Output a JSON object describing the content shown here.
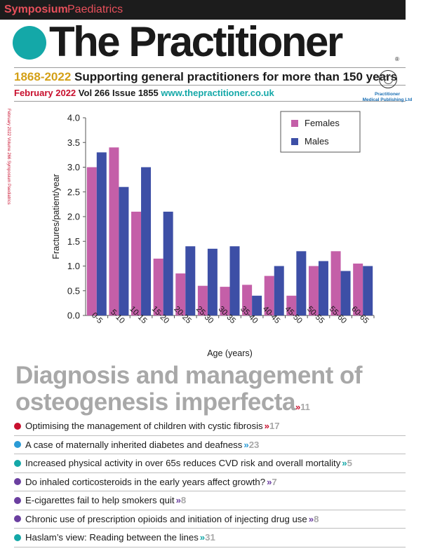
{
  "banner": {
    "symposium": "Symposium",
    "section": "Paediatrics"
  },
  "masthead": {
    "title": "The Practitioner",
    "registered": "®"
  },
  "tagline": {
    "years": "1868-2022",
    "text": "Supporting general practitioners for more than 150 years"
  },
  "issue": {
    "date": "February 2022",
    "volume": "Vol 266 Issue 1855",
    "url": "www.thepractitioner.co.uk"
  },
  "publisher": {
    "line1": "Practitioner",
    "line2": "Medical Publishing Ltd"
  },
  "spine": "February 2022 Volume 266 Symposium Paediatrics",
  "headline": {
    "line1": "Diagnosis and management of",
    "line2": "osteogenesis imperfecta",
    "chevron": "»",
    "page": "11"
  },
  "chart_data": {
    "type": "bar",
    "categories": [
      "0-5",
      "5-10",
      "10-15",
      "15-20",
      "20-25",
      "25-30",
      "30-35",
      "35-40",
      "40-45",
      "45-50",
      "50-55",
      "55-60",
      "60-65"
    ],
    "series": [
      {
        "name": "Females",
        "color": "#c45fa8",
        "values": [
          3.0,
          3.4,
          2.1,
          1.15,
          0.85,
          0.6,
          0.58,
          0.62,
          0.8,
          0.4,
          1.0,
          1.3,
          1.05
        ]
      },
      {
        "name": "Males",
        "color": "#3d4fa6",
        "values": [
          3.3,
          2.6,
          3.0,
          2.1,
          1.4,
          1.35,
          1.4,
          0.4,
          1.0,
          1.3,
          1.1,
          0.9,
          1.0
        ]
      }
    ],
    "title": "",
    "xlabel": "Age (years)",
    "ylabel": "Fractures/patient/year",
    "ylim": [
      0,
      4.0
    ],
    "yticks": [
      "0.0",
      "0.5",
      "1.0",
      "1.5",
      "2.0",
      "2.5",
      "3.0",
      "3.5",
      "4.0"
    ],
    "grid": false,
    "legend": "top-right"
  },
  "stories": [
    {
      "text": "Optimising the management of children with cystic fibrosis",
      "chevron": "»",
      "page": "17",
      "color": "#c8102e"
    },
    {
      "text": "A case of maternally inherited diabetes and deafness",
      "chevron": "»",
      "page": "23",
      "color": "#2b9bd6"
    },
    {
      "text": "Increased physical activity in over 65s reduces CVD risk and overall mortality",
      "chevron": "»",
      "page": "5",
      "color": "#14a8a8"
    },
    {
      "text": "Do inhaled corticosteroids in the early years affect growth?",
      "chevron": "»",
      "page": "7",
      "color": "#6b3fa0"
    },
    {
      "text": "E-cigarettes fail to help smokers quit",
      "chevron": "»",
      "page": "8",
      "color": "#6b3fa0"
    },
    {
      "text": "Chronic use of prescription opioids and initiation of injecting drug use",
      "chevron": "»",
      "page": "8",
      "color": "#6b3fa0"
    },
    {
      "text": "Haslam’s view: Reading between the lines",
      "chevron": "»",
      "page": "31",
      "color": "#14a8a8"
    }
  ]
}
